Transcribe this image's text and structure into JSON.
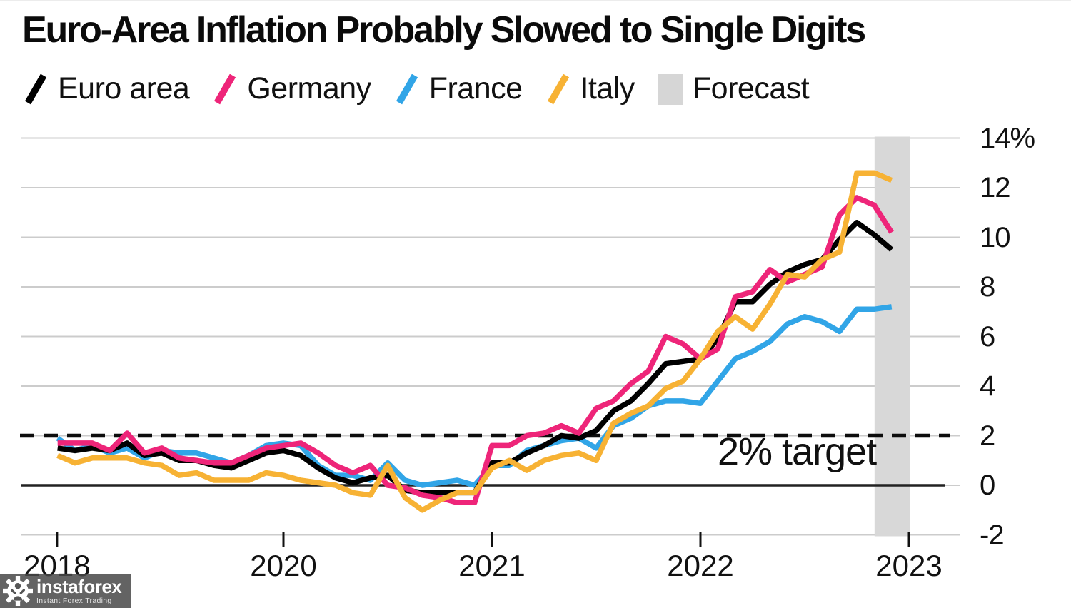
{
  "title": "Euro-Area Inflation Probably Slowed to Single Digits",
  "annotations": {
    "target_label": "2% target"
  },
  "watermark": {
    "brand": "instaforex",
    "tagline": "Instant Forex Trading"
  },
  "chart_data": {
    "type": "line",
    "title": "Euro-Area Inflation Probably Slowed to Single Digits",
    "unit": "%",
    "ylim": [
      -2,
      14
    ],
    "xlim": [
      2018.87,
      2023.06
    ],
    "grid": true,
    "legend_position": "top",
    "y_ticks": [
      {
        "v": 14,
        "label": "14%"
      },
      {
        "v": 12,
        "label": "12"
      },
      {
        "v": 10,
        "label": "10"
      },
      {
        "v": 8,
        "label": "8"
      },
      {
        "v": 6,
        "label": "6"
      },
      {
        "v": 4,
        "label": "4"
      },
      {
        "v": 2,
        "label": "2"
      },
      {
        "v": 0,
        "label": "0"
      },
      {
        "v": -2,
        "label": "-2"
      }
    ],
    "x_ticks": [
      {
        "t": 2018.914,
        "label": "2018"
      },
      {
        "t": 2020.0,
        "label": "2020"
      },
      {
        "t": 2021.0,
        "label": "2021"
      },
      {
        "t": 2022.0,
        "label": "2022"
      },
      {
        "t": 2023.0,
        "label": "2023"
      }
    ],
    "target_line": {
      "value": 2,
      "label": "2% target",
      "style": "dashed"
    },
    "zero_line": {
      "value": 0
    },
    "forecast_band": {
      "from": 2022.835,
      "to": 2023.005
    },
    "x_start": 2018.9167,
    "x_step": 0.0833333,
    "legend": [
      {
        "label": "Euro area",
        "color": "#000000",
        "marker": "slash"
      },
      {
        "label": "Germany",
        "color": "#ee2579",
        "marker": "slash"
      },
      {
        "label": "France",
        "color": "#31a5e7",
        "marker": "slash"
      },
      {
        "label": "Italy",
        "color": "#f7b234",
        "marker": "slash"
      },
      {
        "label": "Forecast",
        "color": "#d6d6d6",
        "marker": "box"
      }
    ],
    "series": [
      {
        "name": "Euro area",
        "color": "#000000",
        "values": [
          1.5,
          1.4,
          1.5,
          1.4,
          1.7,
          1.2,
          1.3,
          1.0,
          1.0,
          0.8,
          0.7,
          1.0,
          1.3,
          1.4,
          1.2,
          0.7,
          0.3,
          0.1,
          0.3,
          0.4,
          -0.2,
          -0.3,
          -0.3,
          -0.3,
          -0.3,
          0.9,
          0.9,
          1.3,
          1.6,
          2.0,
          1.9,
          2.2,
          3.0,
          3.4,
          4.1,
          4.9,
          5.0,
          5.1,
          5.9,
          7.4,
          7.4,
          8.1,
          8.6,
          8.9,
          9.1,
          9.9,
          10.6,
          10.1,
          9.5
        ]
      },
      {
        "name": "Germany",
        "color": "#ee2579",
        "values": [
          1.7,
          1.7,
          1.7,
          1.4,
          2.1,
          1.3,
          1.5,
          1.1,
          1.0,
          0.9,
          0.9,
          1.2,
          1.5,
          1.6,
          1.7,
          1.3,
          0.8,
          0.5,
          0.8,
          0.0,
          -0.1,
          -0.4,
          -0.5,
          -0.7,
          -0.7,
          1.6,
          1.6,
          2.0,
          2.1,
          2.4,
          2.1,
          3.1,
          3.4,
          4.1,
          4.6,
          6.0,
          5.7,
          5.1,
          5.5,
          7.6,
          7.8,
          8.7,
          8.2,
          8.5,
          8.8,
          10.9,
          11.6,
          11.3,
          10.2
        ]
      },
      {
        "name": "France",
        "color": "#31a5e7",
        "values": [
          1.9,
          1.4,
          1.6,
          1.3,
          1.5,
          1.1,
          1.4,
          1.3,
          1.3,
          1.1,
          0.9,
          1.2,
          1.6,
          1.7,
          1.6,
          0.8,
          0.4,
          0.4,
          0.2,
          0.9,
          0.2,
          0.0,
          0.1,
          0.2,
          0.0,
          0.8,
          0.8,
          1.4,
          1.6,
          1.8,
          1.9,
          1.5,
          2.4,
          2.7,
          3.2,
          3.4,
          3.4,
          3.3,
          4.2,
          5.1,
          5.4,
          5.8,
          6.5,
          6.8,
          6.6,
          6.2,
          7.1,
          7.1,
          7.2
        ]
      },
      {
        "name": "Italy",
        "color": "#f7b234",
        "values": [
          1.2,
          0.9,
          1.1,
          1.1,
          1.1,
          0.9,
          0.8,
          0.4,
          0.5,
          0.2,
          0.2,
          0.2,
          0.5,
          0.4,
          0.2,
          0.1,
          0.0,
          -0.3,
          -0.4,
          0.8,
          -0.5,
          -1.0,
          -0.6,
          -0.3,
          -0.3,
          0.7,
          1.0,
          0.6,
          1.0,
          1.2,
          1.3,
          1.0,
          2.5,
          2.9,
          3.2,
          3.9,
          4.2,
          5.1,
          6.2,
          6.8,
          6.3,
          7.3,
          8.5,
          8.4,
          9.1,
          9.4,
          12.6,
          12.6,
          12.3
        ]
      }
    ]
  }
}
